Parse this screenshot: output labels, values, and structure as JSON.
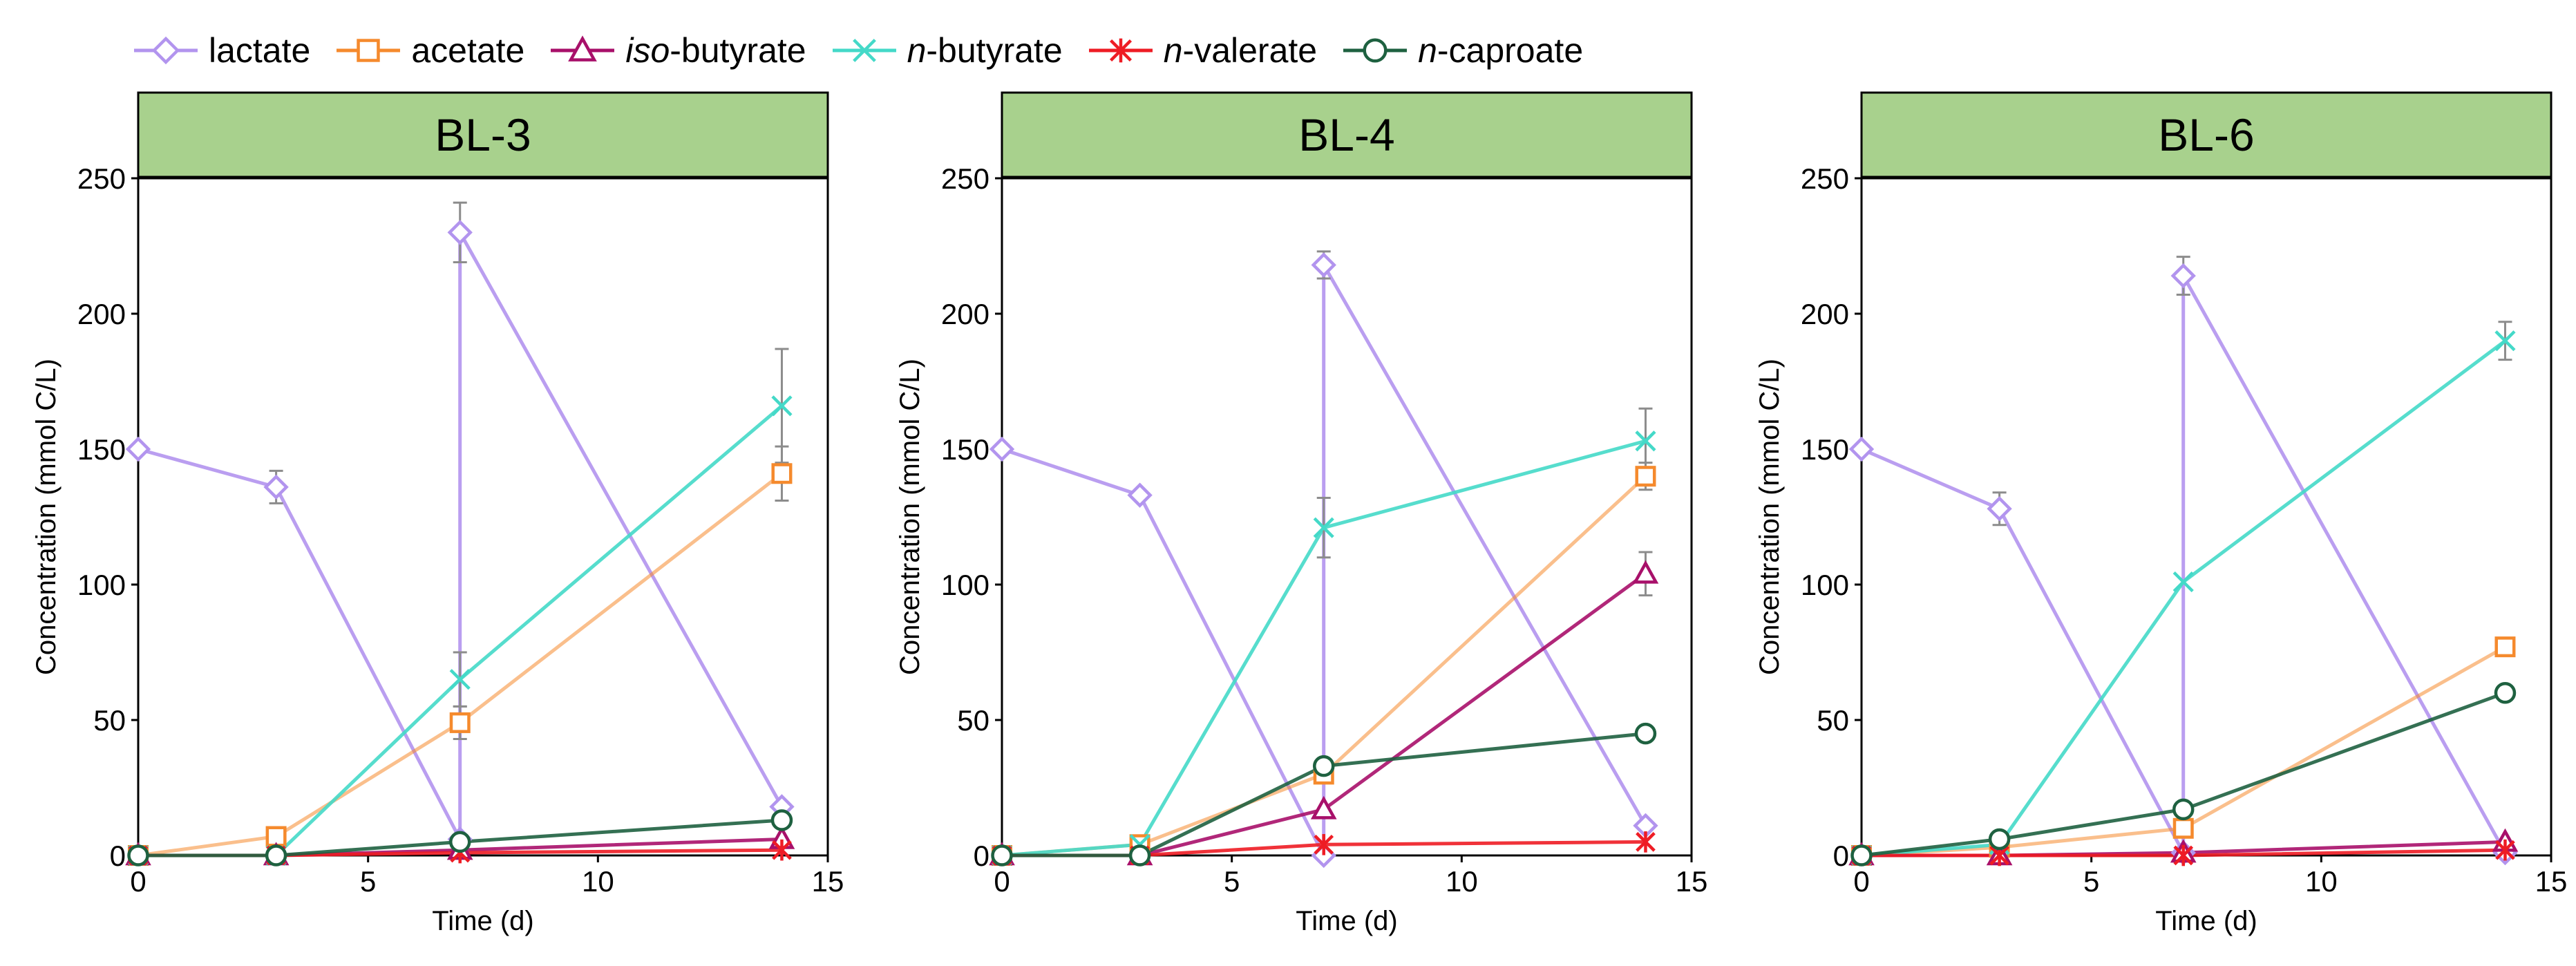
{
  "legend": [
    {
      "key": "lactate",
      "prefix": "",
      "suffix": "lactate"
    },
    {
      "key": "acetate",
      "prefix": "",
      "suffix": "acetate"
    },
    {
      "key": "iso_butyrate",
      "prefix": "iso",
      "suffix": "-butyrate"
    },
    {
      "key": "n_butyrate",
      "prefix": "n",
      "suffix": "-butyrate"
    },
    {
      "key": "n_valerate",
      "prefix": "n",
      "suffix": "-valerate"
    },
    {
      "key": "n_caproate",
      "prefix": "n",
      "suffix": "-caproate"
    }
  ],
  "series_style": {
    "lactate": {
      "marker": "diamond",
      "color": "#B294EE"
    },
    "acetate": {
      "marker": "square",
      "color": "#F58A2D"
    },
    "iso_butyrate": {
      "marker": "triangle",
      "color": "#A8106A"
    },
    "n_butyrate": {
      "marker": "x",
      "color": "#44D9C8"
    },
    "n_valerate": {
      "marker": "star",
      "color": "#EE1C24"
    },
    "n_caproate": {
      "marker": "circle",
      "color": "#1E6140"
    }
  },
  "chart_data": [
    {
      "type": "line",
      "title": "BL-3",
      "xlabel": "Time (d)",
      "ylabel": "Concentration (mmol C/L)",
      "xlim": [
        0,
        15
      ],
      "ylim": [
        0,
        250
      ],
      "xticks": [
        0,
        5,
        10,
        15
      ],
      "yticks": [
        0,
        50,
        100,
        150,
        200,
        250
      ],
      "series": [
        {
          "key": "lactate",
          "x": [
            0,
            3,
            7,
            7,
            14
          ],
          "y": [
            150,
            136,
            6,
            230,
            18
          ],
          "err": [
            0,
            6,
            0,
            11,
            0
          ]
        },
        {
          "key": "acetate",
          "x": [
            0,
            3,
            7,
            14
          ],
          "y": [
            0,
            7,
            49,
            141
          ],
          "err": [
            0,
            0,
            6,
            10
          ]
        },
        {
          "key": "iso_butyrate",
          "x": [
            0,
            3,
            7,
            14
          ],
          "y": [
            0,
            0,
            2,
            6
          ],
          "err": [
            0,
            0,
            0,
            0
          ]
        },
        {
          "key": "n_butyrate",
          "x": [
            0,
            3,
            7,
            14
          ],
          "y": [
            0,
            0,
            65,
            166
          ],
          "err": [
            0,
            0,
            10,
            21
          ]
        },
        {
          "key": "n_valerate",
          "x": [
            0,
            3,
            7,
            14
          ],
          "y": [
            0,
            0,
            1,
            2
          ],
          "err": [
            0,
            0,
            0,
            0
          ]
        },
        {
          "key": "n_caproate",
          "x": [
            0,
            3,
            7,
            14
          ],
          "y": [
            0,
            0,
            5,
            13
          ],
          "err": [
            0,
            0,
            0,
            0
          ]
        }
      ]
    },
    {
      "type": "line",
      "title": "BL-4",
      "xlabel": "Time (d)",
      "ylabel": "Concentration (mmol C/L)",
      "xlim": [
        0,
        15
      ],
      "ylim": [
        0,
        250
      ],
      "xticks": [
        0,
        5,
        10,
        15
      ],
      "yticks": [
        0,
        50,
        100,
        150,
        200,
        250
      ],
      "series": [
        {
          "key": "lactate",
          "x": [
            0,
            3,
            7,
            7,
            14
          ],
          "y": [
            150,
            133,
            0,
            218,
            11
          ],
          "err": [
            0,
            0,
            0,
            5,
            0
          ]
        },
        {
          "key": "acetate",
          "x": [
            0,
            3,
            7,
            14
          ],
          "y": [
            0,
            4,
            30,
            140
          ],
          "err": [
            0,
            0,
            0,
            5
          ]
        },
        {
          "key": "iso_butyrate",
          "x": [
            0,
            3,
            7,
            14
          ],
          "y": [
            0,
            0,
            17,
            104
          ],
          "err": [
            0,
            0,
            0,
            8
          ]
        },
        {
          "key": "n_butyrate",
          "x": [
            0,
            3,
            7,
            14
          ],
          "y": [
            0,
            4,
            121,
            153
          ],
          "err": [
            0,
            0,
            11,
            12
          ]
        },
        {
          "key": "n_valerate",
          "x": [
            0,
            3,
            7,
            14
          ],
          "y": [
            0,
            0,
            4,
            5
          ],
          "err": [
            0,
            0,
            0,
            0
          ]
        },
        {
          "key": "n_caproate",
          "x": [
            0,
            3,
            7,
            14
          ],
          "y": [
            0,
            0,
            33,
            45
          ],
          "err": [
            0,
            0,
            0,
            0
          ]
        }
      ]
    },
    {
      "type": "line",
      "title": "BL-6",
      "xlabel": "Time (d)",
      "ylabel": "Concentration (mmol C/L)",
      "xlim": [
        0,
        15
      ],
      "ylim": [
        0,
        250
      ],
      "xticks": [
        0,
        5,
        10,
        15
      ],
      "yticks": [
        0,
        50,
        100,
        150,
        200,
        250
      ],
      "series": [
        {
          "key": "lactate",
          "x": [
            0,
            3,
            7,
            7,
            14
          ],
          "y": [
            150,
            128,
            1,
            214,
            1
          ],
          "err": [
            0,
            6,
            0,
            7,
            0
          ]
        },
        {
          "key": "acetate",
          "x": [
            0,
            3,
            7,
            14
          ],
          "y": [
            0,
            3,
            10,
            77
          ],
          "err": [
            0,
            0,
            0,
            0
          ]
        },
        {
          "key": "iso_butyrate",
          "x": [
            0,
            3,
            7,
            14
          ],
          "y": [
            0,
            0,
            1,
            5
          ],
          "err": [
            0,
            0,
            0,
            0
          ]
        },
        {
          "key": "n_butyrate",
          "x": [
            0,
            3,
            7,
            14
          ],
          "y": [
            0,
            4,
            101,
            190
          ],
          "err": [
            0,
            0,
            0,
            7
          ]
        },
        {
          "key": "n_valerate",
          "x": [
            0,
            3,
            7,
            14
          ],
          "y": [
            0,
            0,
            0,
            2
          ],
          "err": [
            0,
            0,
            0,
            0
          ]
        },
        {
          "key": "n_caproate",
          "x": [
            0,
            3,
            7,
            14
          ],
          "y": [
            0,
            6,
            17,
            60
          ],
          "err": [
            0,
            0,
            0,
            0
          ]
        }
      ]
    }
  ]
}
